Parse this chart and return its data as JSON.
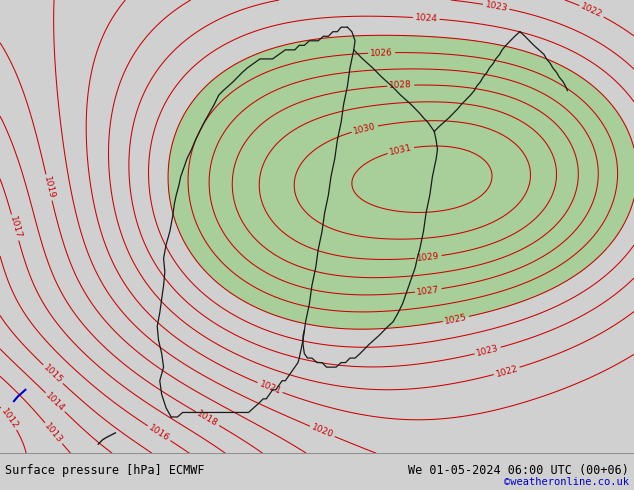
{
  "title_left": "Surface pressure [hPa] ECMWF",
  "title_right": "We 01-05-2024 06:00 UTC (00+06)",
  "copyright": "©weatheronline.co.uk",
  "bg_color": "#d0d0d0",
  "green_color": "#a8cf9a",
  "contour_color": "#cc0000",
  "coast_color": "#1a1a1a",
  "bottom_bar_color": "#e0e0e0",
  "bottom_text_color": "#000000",
  "copyright_color": "#0000cc",
  "blue_line_color": "#0000cc",
  "font_size_labels": 6.5,
  "font_size_bottom": 8.5,
  "font_size_copyright": 7.5
}
